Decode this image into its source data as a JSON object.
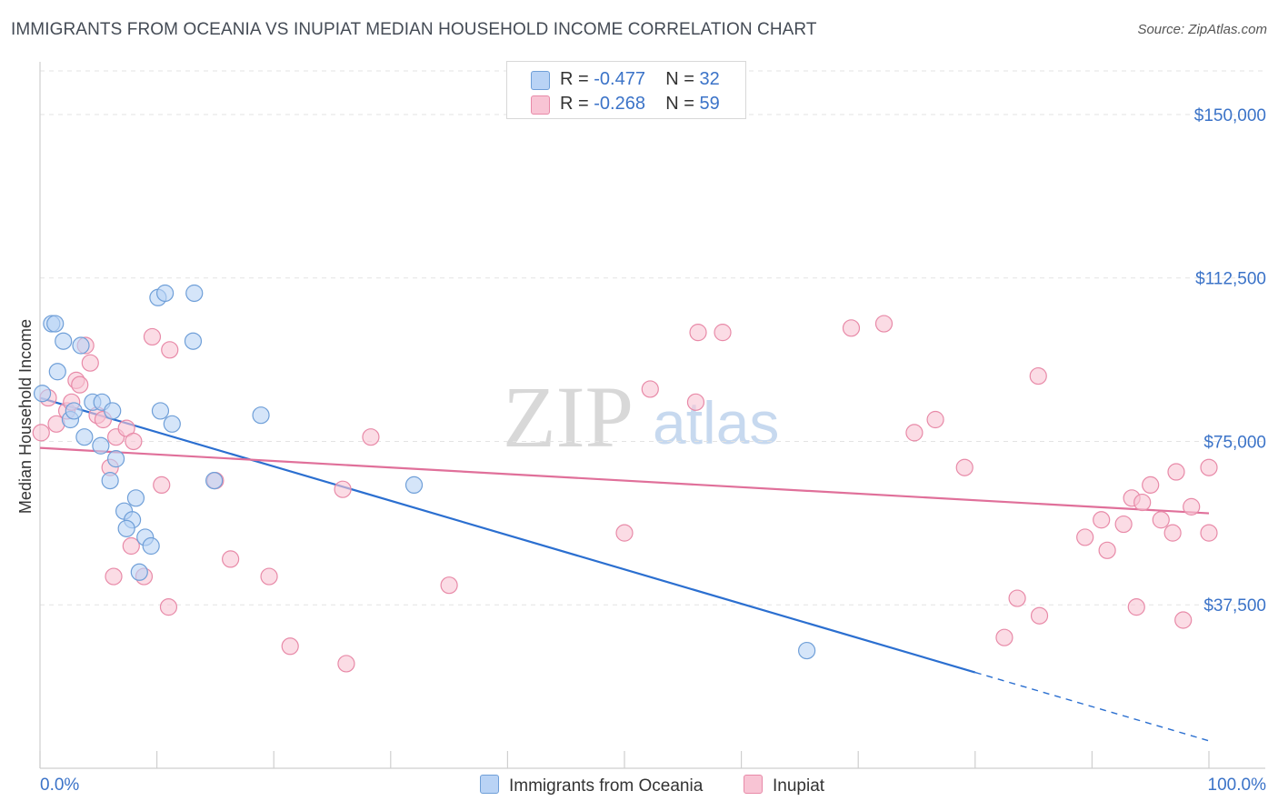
{
  "header": {
    "title": "IMMIGRANTS FROM OCEANIA VS INUPIAT MEDIAN HOUSEHOLD INCOME CORRELATION CHART",
    "source": "Source: ZipAtlas.com"
  },
  "legend_top": {
    "rows": [
      {
        "r_label": "R =",
        "r_value": "-0.477",
        "n_label": "N =",
        "n_value": "32"
      },
      {
        "r_label": "R =",
        "r_value": "-0.268",
        "n_label": "N =",
        "n_value": "59"
      }
    ]
  },
  "legend_bottom": {
    "items": [
      "Immigrants from Oceania",
      "Inupiat"
    ]
  },
  "watermark": {
    "zip": "ZIP",
    "atlas": "atlas"
  },
  "colors": {
    "blue_fill": "#b9d3f5",
    "blue_stroke": "#6f9fd8",
    "blue_line": "#2b6fd0",
    "pink_fill": "#f8c4d4",
    "pink_stroke": "#e88aa8",
    "pink_line": "#e0709a",
    "axis_text": "#3b73c8",
    "grid": "#e3e3e3"
  },
  "chart_data": {
    "type": "scatter",
    "title": "IMMIGRANTS FROM OCEANIA VS INUPIAT MEDIAN HOUSEHOLD INCOME CORRELATION CHART",
    "xlabel": "",
    "ylabel": "Median Household Income",
    "xlim": [
      0,
      100
    ],
    "ylim": [
      0,
      160000
    ],
    "x_tick_labels": [
      "0.0%",
      "100.0%"
    ],
    "y_ticks": [
      37500,
      75000,
      112500,
      150000
    ],
    "y_tick_labels": [
      "$37,500",
      "$75,000",
      "$112,500",
      "$150,000"
    ],
    "series": [
      {
        "name": "Immigrants from Oceania",
        "color": "#b9d3f5",
        "stats": {
          "R": -0.477,
          "N": 32
        },
        "trend": {
          "x0": 0,
          "y0": 85000,
          "x1": 80,
          "y1": 22000,
          "dash_to_x": 100,
          "dash_to_y": 6300
        },
        "points": [
          [
            0.2,
            86000
          ],
          [
            1.0,
            102000
          ],
          [
            1.3,
            102000
          ],
          [
            2.0,
            98000
          ],
          [
            1.5,
            91000
          ],
          [
            2.6,
            80000
          ],
          [
            3.5,
            97000
          ],
          [
            2.9,
            82000
          ],
          [
            3.8,
            76000
          ],
          [
            4.5,
            84000
          ],
          [
            5.3,
            84000
          ],
          [
            5.2,
            74000
          ],
          [
            6.2,
            82000
          ],
          [
            6.5,
            71000
          ],
          [
            6.0,
            66000
          ],
          [
            7.2,
            59000
          ],
          [
            7.9,
            57000
          ],
          [
            7.4,
            55000
          ],
          [
            8.2,
            62000
          ],
          [
            8.5,
            45000
          ],
          [
            9.0,
            53000
          ],
          [
            9.5,
            51000
          ],
          [
            10.1,
            108000
          ],
          [
            10.7,
            109000
          ],
          [
            10.3,
            82000
          ],
          [
            11.3,
            79000
          ],
          [
            13.1,
            98000
          ],
          [
            13.2,
            109000
          ],
          [
            14.9,
            66000
          ],
          [
            18.9,
            81000
          ],
          [
            32.0,
            65000
          ],
          [
            65.6,
            27000
          ]
        ]
      },
      {
        "name": "Inupiat",
        "color": "#f8c4d4",
        "stats": {
          "R": -0.268,
          "N": 59
        },
        "trend": {
          "x0": 0,
          "y0": 73500,
          "x1": 100,
          "y1": 58500
        },
        "points": [
          [
            0.1,
            77000
          ],
          [
            0.7,
            85000
          ],
          [
            1.4,
            79000
          ],
          [
            2.3,
            82000
          ],
          [
            3.1,
            89000
          ],
          [
            2.7,
            84000
          ],
          [
            3.4,
            88000
          ],
          [
            3.9,
            97000
          ],
          [
            4.3,
            93000
          ],
          [
            4.9,
            81000
          ],
          [
            5.4,
            80000
          ],
          [
            6.0,
            69000
          ],
          [
            6.5,
            76000
          ],
          [
            7.4,
            78000
          ],
          [
            8.0,
            75000
          ],
          [
            7.8,
            51000
          ],
          [
            6.3,
            44000
          ],
          [
            8.9,
            44000
          ],
          [
            9.6,
            99000
          ],
          [
            11.1,
            96000
          ],
          [
            10.4,
            65000
          ],
          [
            11.0,
            37000
          ],
          [
            15.0,
            66000
          ],
          [
            16.3,
            48000
          ],
          [
            19.6,
            44000
          ],
          [
            21.4,
            28000
          ],
          [
            25.9,
            64000
          ],
          [
            26.2,
            24000
          ],
          [
            28.3,
            76000
          ],
          [
            35.0,
            42000
          ],
          [
            50.0,
            54000
          ],
          [
            52.2,
            87000
          ],
          [
            56.1,
            84000
          ],
          [
            56.3,
            100000
          ],
          [
            58.4,
            100000
          ],
          [
            72.2,
            102000
          ],
          [
            69.4,
            101000
          ],
          [
            74.8,
            77000
          ],
          [
            76.6,
            80000
          ],
          [
            79.1,
            69000
          ],
          [
            82.5,
            30000
          ],
          [
            83.6,
            39000
          ],
          [
            85.5,
            35000
          ],
          [
            85.4,
            90000
          ],
          [
            89.4,
            53000
          ],
          [
            90.8,
            57000
          ],
          [
            91.3,
            50000
          ],
          [
            92.7,
            56000
          ],
          [
            93.4,
            62000
          ],
          [
            93.8,
            37000
          ],
          [
            94.3,
            61000
          ],
          [
            95.0,
            65000
          ],
          [
            95.9,
            57000
          ],
          [
            96.9,
            54000
          ],
          [
            97.2,
            68000
          ],
          [
            97.8,
            34000
          ],
          [
            98.5,
            60000
          ],
          [
            100.0,
            54000
          ],
          [
            100.0,
            69000
          ]
        ]
      }
    ]
  }
}
